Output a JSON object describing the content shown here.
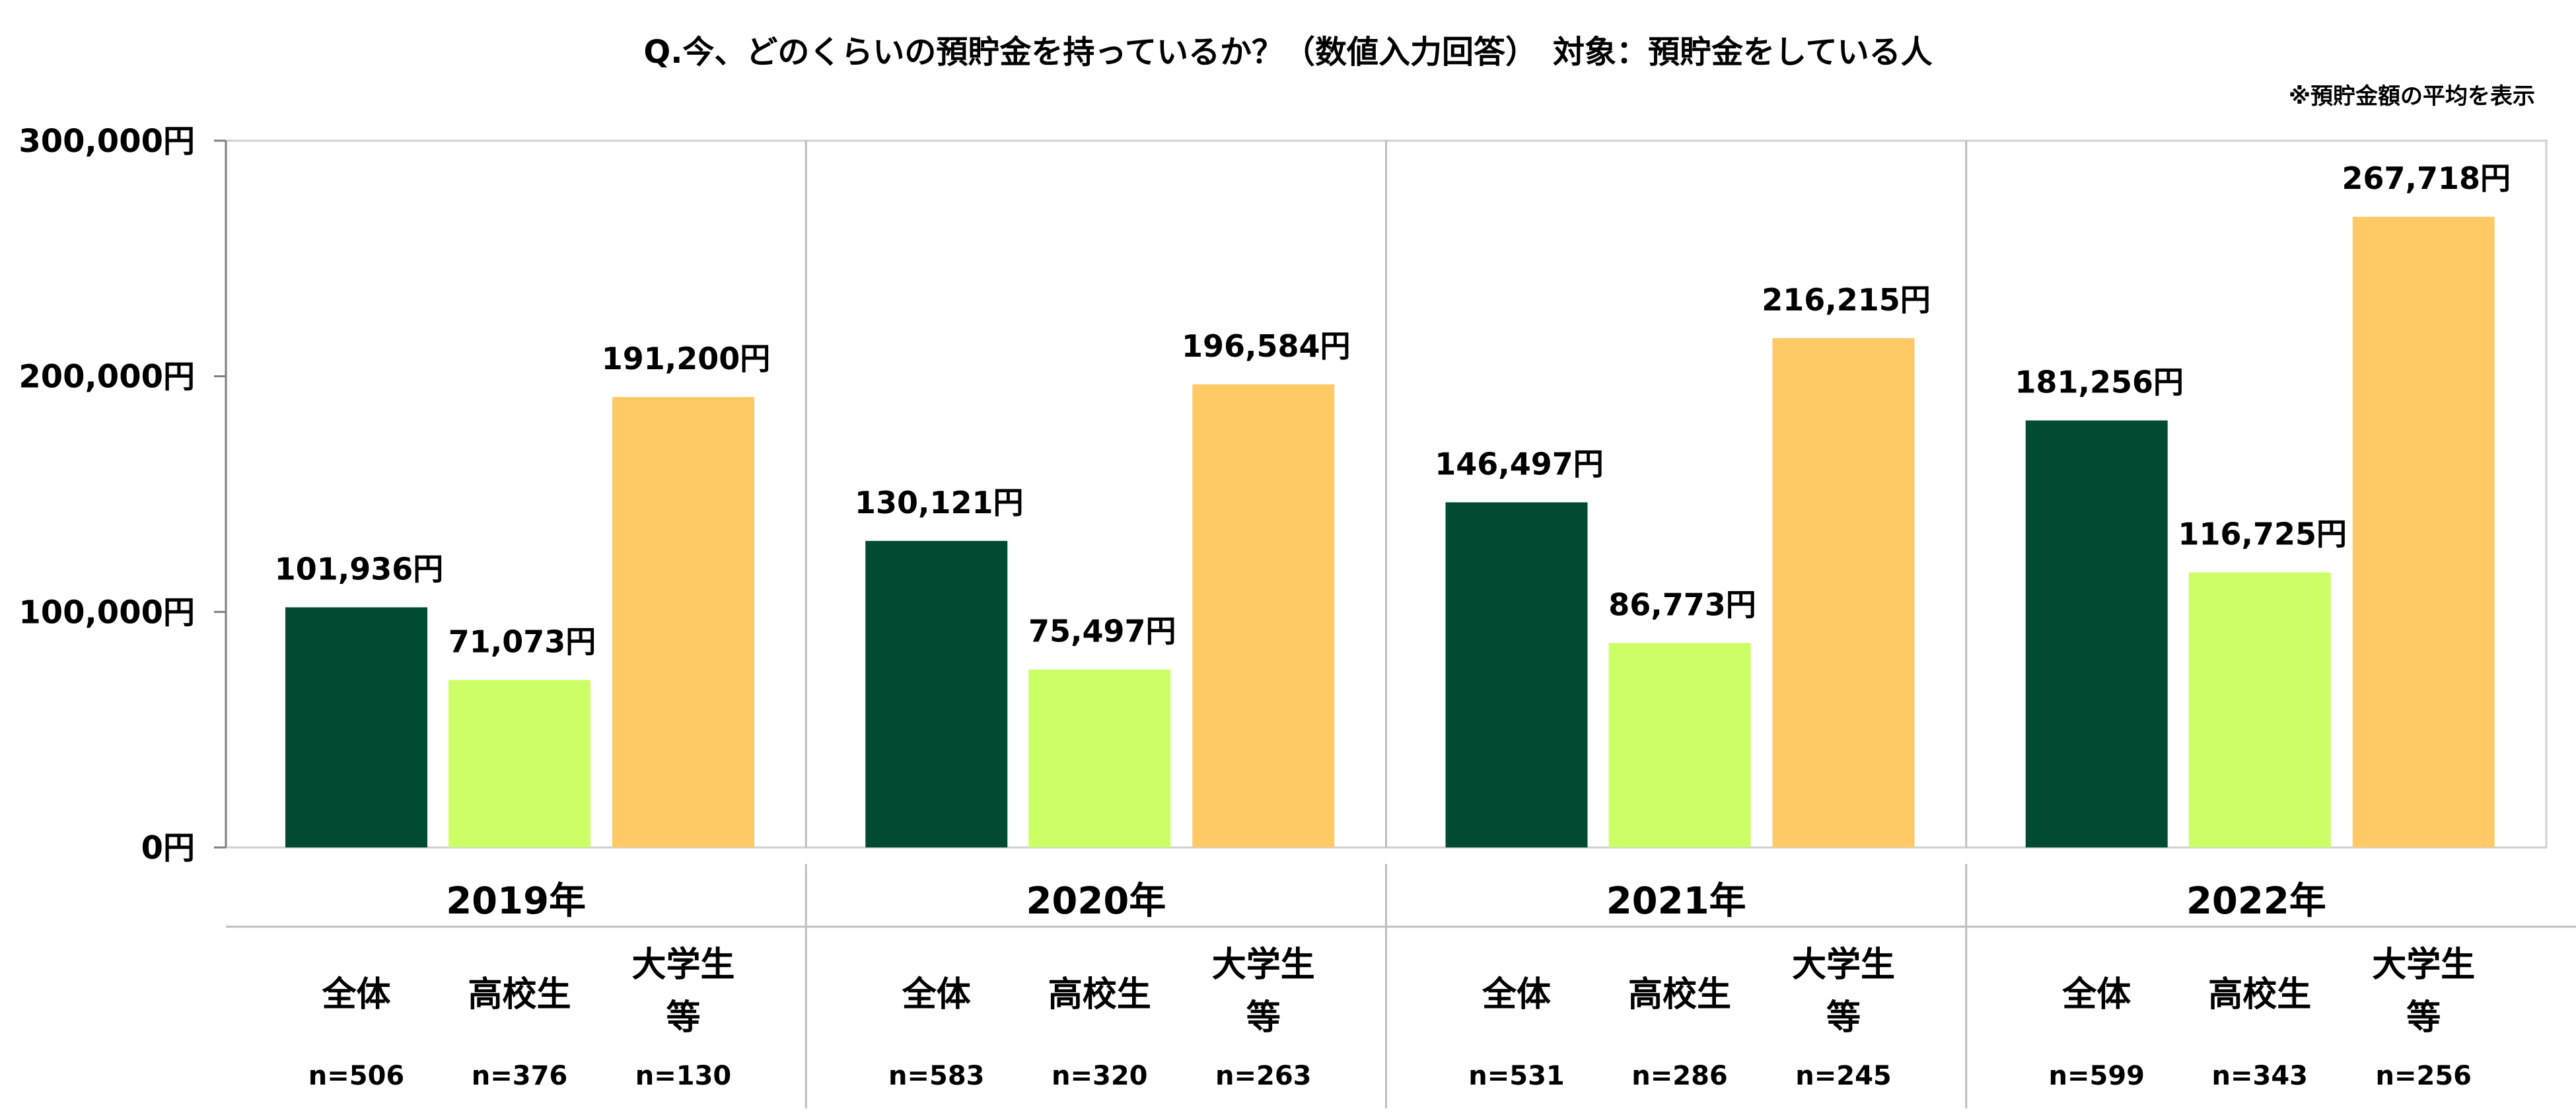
{
  "chart_data": {
    "type": "bar",
    "title": "Q.今、どのくらいの預貯金を持っているか？（数値入力回答）　対象：預貯金をしている人",
    "note": "※預貯金額の平均を表示",
    "unit": "円",
    "ylim": [
      0,
      300000
    ],
    "y_ticks": [
      0,
      100000,
      200000,
      300000
    ],
    "y_tick_labels": [
      "0円",
      "100,000円",
      "200,000円",
      "300,000円"
    ],
    "grid": false,
    "legend": "none",
    "categories": [
      "2019年",
      "2020年",
      "2021年",
      "2022年"
    ],
    "series": [
      {
        "name": "全体",
        "color": "#004B32",
        "values": [
          101936,
          130121,
          146497,
          181256
        ],
        "labels": [
          "101,936円",
          "130,121円",
          "146,497円",
          "181,256円"
        ],
        "n": [
          "n=506",
          "n=583",
          "n=531",
          "n=599"
        ]
      },
      {
        "name": "高校生",
        "color": "#CCFF66",
        "values": [
          71073,
          75497,
          86773,
          116725
        ],
        "labels": [
          "71,073円",
          "75,497円",
          "86,773円",
          "116,725円"
        ],
        "n": [
          "n=376",
          "n=320",
          "n=286",
          "n=343"
        ]
      },
      {
        "name": "大学生等",
        "name_lines": [
          "大学生",
          "等"
        ],
        "color": "#FFC966",
        "values": [
          191200,
          196584,
          216215,
          267718
        ],
        "labels": [
          "191,200円",
          "196,584円",
          "216,215円",
          "267,718円"
        ],
        "n": [
          "n=130",
          "n=263",
          "n=245",
          "n=256"
        ]
      }
    ]
  }
}
